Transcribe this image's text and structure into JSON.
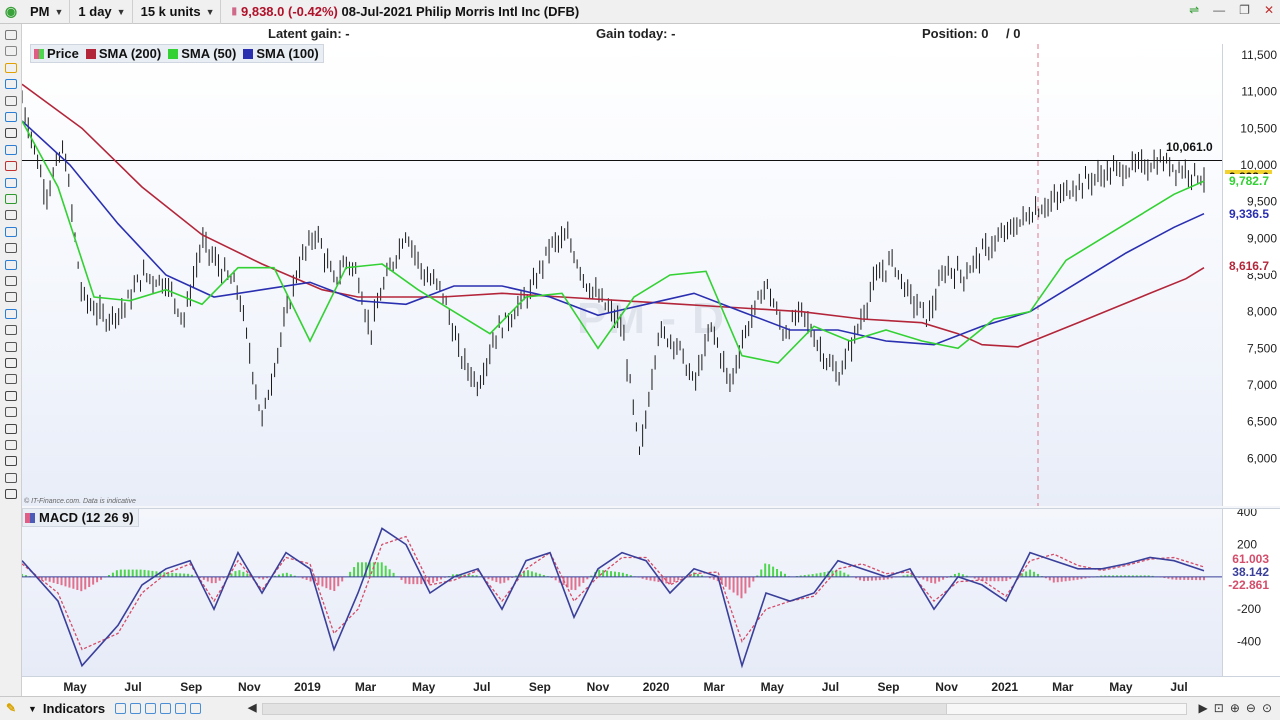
{
  "toolbar": {
    "symbol": "PM",
    "interval": "1 day",
    "size": "15 k units",
    "quote_price": "9,838.0",
    "quote_change": "(-0.42%)",
    "quote_date": "08-Jul-2021",
    "instrument": "Philip Morris Intl Inc (DFB)"
  },
  "infobar": {
    "latent_gain": "Latent gain: -",
    "gain_today": "Gain today: -",
    "position": "Position: 0",
    "position_sep": "/ 0"
  },
  "legend": {
    "price": "Price",
    "sma200": "SMA (200)",
    "sma50": "SMA (50)",
    "sma100": "SMA (100)",
    "macd": "MACD (12 26 9)"
  },
  "watermark": "PM - D",
  "credit": "© IT-Finance.com. Data is indicative",
  "bottom": {
    "indicators_label": "Indicators"
  },
  "colors": {
    "price_up": "#222222",
    "sma200": "#b3263a",
    "sma50": "#33d133",
    "sma100": "#2a2fb0",
    "macd_line": "#3a3f9a",
    "macd_signal": "#d44d6a",
    "hist_pos": "#4fd64f",
    "hist_neg": "#e0708e"
  },
  "chart_data": [
    {
      "type": "line",
      "title": "",
      "y_ticks": [
        "11,500",
        "11,000",
        "10,500",
        "10,000",
        "9,500",
        "9,000",
        "8,500",
        "8,000",
        "7,500",
        "7,000",
        "6,500",
        "6,000"
      ],
      "x_ticks": [
        "May",
        "Jul",
        "Sep",
        "Nov",
        "2019",
        "Mar",
        "May",
        "Jul",
        "Sep",
        "Nov",
        "2020",
        "Mar",
        "May",
        "Jul",
        "Sep",
        "Nov",
        "2021",
        "Mar",
        "May",
        "Jul"
      ],
      "ylim": [
        5350,
        11650
      ],
      "horizontal_line": {
        "value": 10061,
        "label": "10,061.0"
      },
      "badges": [
        {
          "label": "9,838.0",
          "value": 9838,
          "color": "#f2d22e"
        },
        {
          "label": "9,782.7",
          "value": 9782.7,
          "color": "#33d133"
        },
        {
          "label": "9,336.5",
          "value": 9336.5,
          "color": "#2a2fb0"
        },
        {
          "label": "8,616.7",
          "value": 8616.7,
          "color": "#b3263a"
        }
      ],
      "series": [
        {
          "name": "Price",
          "key": "price",
          "x": [
            0,
            0.02,
            0.035,
            0.05,
            0.07,
            0.085,
            0.1,
            0.12,
            0.135,
            0.15,
            0.165,
            0.18,
            0.2,
            0.215,
            0.23,
            0.245,
            0.26,
            0.27,
            0.28,
            0.29,
            0.3,
            0.32,
            0.335,
            0.35,
            0.365,
            0.38,
            0.395,
            0.41,
            0.425,
            0.44,
            0.455,
            0.47,
            0.485,
            0.5,
            0.515,
            0.53,
            0.545,
            0.56,
            0.575,
            0.59,
            0.6,
            0.61,
            0.62,
            0.635,
            0.65,
            0.665,
            0.68,
            0.695,
            0.71,
            0.725,
            0.74,
            0.755,
            0.77,
            0.785,
            0.8,
            0.815,
            0.83,
            0.845,
            0.86,
            0.875,
            0.89,
            0.905,
            0.92,
            0.935,
            0.95,
            0.965,
            0.985
          ],
          "values": [
            10900,
            9600,
            10250,
            8200,
            7900,
            8050,
            8500,
            8400,
            7900,
            8950,
            8600,
            8300,
            6500,
            7600,
            8600,
            9100,
            8400,
            8700,
            8500,
            7700,
            8300,
            9100,
            8500,
            8300,
            7400,
            7000,
            7700,
            8000,
            8300,
            8900,
            9000,
            8400,
            8100,
            7800,
            6000,
            7700,
            7600,
            7000,
            7800,
            7000,
            7600,
            8000,
            8400,
            7700,
            8000,
            7500,
            7100,
            7700,
            8400,
            8700,
            8200,
            7900,
            8600,
            8500,
            8800,
            9000,
            9200,
            9400,
            9500,
            9700,
            9800,
            9900,
            9950,
            10000,
            10050,
            9950,
            9838
          ]
        },
        {
          "name": "SMA (200)",
          "key": "sma200",
          "x": [
            0,
            0.05,
            0.1,
            0.15,
            0.2,
            0.25,
            0.28,
            0.3,
            0.35,
            0.4,
            0.45,
            0.5,
            0.55,
            0.6,
            0.65,
            0.7,
            0.75,
            0.78,
            0.8,
            0.83,
            0.85,
            0.88,
            0.91,
            0.94,
            0.97,
            0.985
          ],
          "values": [
            11100,
            10500,
            9700,
            9050,
            8650,
            8300,
            8200,
            8200,
            8200,
            8250,
            8200,
            8150,
            8100,
            8050,
            8000,
            7900,
            7850,
            7700,
            7550,
            7520,
            7650,
            7850,
            8050,
            8250,
            8450,
            8600
          ]
        },
        {
          "name": "SMA (50)",
          "key": "sma50",
          "x": [
            0,
            0.03,
            0.06,
            0.09,
            0.12,
            0.15,
            0.18,
            0.21,
            0.24,
            0.27,
            0.3,
            0.33,
            0.36,
            0.39,
            0.42,
            0.45,
            0.48,
            0.51,
            0.54,
            0.57,
            0.6,
            0.63,
            0.66,
            0.69,
            0.72,
            0.75,
            0.78,
            0.81,
            0.84,
            0.87,
            0.9,
            0.93,
            0.96,
            0.985
          ],
          "values": [
            10600,
            9700,
            8200,
            8150,
            8300,
            8100,
            8600,
            8600,
            7600,
            8600,
            8650,
            8300,
            8000,
            7700,
            8200,
            8250,
            7500,
            8200,
            8500,
            8550,
            7400,
            7300,
            7800,
            7600,
            7750,
            7600,
            7500,
            7900,
            8000,
            8700,
            9000,
            9300,
            9600,
            9780
          ]
        },
        {
          "name": "SMA (100)",
          "key": "sma100",
          "x": [
            0,
            0.04,
            0.08,
            0.12,
            0.16,
            0.2,
            0.24,
            0.28,
            0.32,
            0.36,
            0.4,
            0.44,
            0.48,
            0.52,
            0.56,
            0.6,
            0.64,
            0.68,
            0.72,
            0.76,
            0.8,
            0.84,
            0.88,
            0.92,
            0.96,
            0.985
          ],
          "values": [
            10600,
            10000,
            9200,
            8500,
            8200,
            8300,
            8400,
            8150,
            8100,
            8350,
            8350,
            8200,
            7950,
            8100,
            8250,
            8000,
            7750,
            7750,
            7600,
            7550,
            7800,
            8000,
            8400,
            8800,
            9150,
            9336
          ]
        }
      ]
    },
    {
      "type": "bar",
      "title": "MACD (12 26 9)",
      "y_ticks": [
        "400",
        "200",
        "-200",
        "-400"
      ],
      "ylim": [
        -620,
        420
      ],
      "badges": [
        {
          "label": "61.003",
          "value": 61.003,
          "color": "#d44d6a"
        },
        {
          "label": "38.142",
          "value": 38.142,
          "color": "#3a3f9a"
        },
        {
          "label": "-22.861",
          "value": -22.861,
          "color": "#d44d6a"
        }
      ],
      "series": [
        {
          "name": "MACD",
          "key": "macd",
          "x": [
            0,
            0.03,
            0.05,
            0.08,
            0.1,
            0.12,
            0.14,
            0.16,
            0.18,
            0.2,
            0.22,
            0.24,
            0.26,
            0.28,
            0.3,
            0.32,
            0.34,
            0.36,
            0.38,
            0.4,
            0.42,
            0.44,
            0.46,
            0.48,
            0.5,
            0.52,
            0.54,
            0.56,
            0.58,
            0.6,
            0.62,
            0.64,
            0.66,
            0.68,
            0.7,
            0.72,
            0.74,
            0.76,
            0.78,
            0.8,
            0.82,
            0.84,
            0.86,
            0.88,
            0.9,
            0.92,
            0.94,
            0.96,
            0.985
          ],
          "values": [
            100,
            -150,
            -550,
            -300,
            -50,
            50,
            100,
            -200,
            150,
            -100,
            150,
            50,
            -450,
            -100,
            300,
            200,
            -100,
            0,
            50,
            -200,
            100,
            150,
            -250,
            50,
            150,
            100,
            -100,
            50,
            0,
            -550,
            -100,
            -150,
            -100,
            100,
            50,
            0,
            50,
            -200,
            0,
            -50,
            -150,
            150,
            100,
            50,
            50,
            80,
            120,
            100,
            38
          ]
        },
        {
          "name": "Signal",
          "key": "signal",
          "x": [
            0,
            0.03,
            0.05,
            0.08,
            0.1,
            0.12,
            0.14,
            0.16,
            0.18,
            0.2,
            0.22,
            0.24,
            0.26,
            0.28,
            0.3,
            0.32,
            0.34,
            0.36,
            0.38,
            0.4,
            0.42,
            0.44,
            0.46,
            0.48,
            0.5,
            0.52,
            0.54,
            0.56,
            0.58,
            0.6,
            0.62,
            0.64,
            0.66,
            0.68,
            0.7,
            0.72,
            0.74,
            0.76,
            0.78,
            0.8,
            0.82,
            0.84,
            0.86,
            0.88,
            0.9,
            0.92,
            0.94,
            0.96,
            0.985
          ],
          "values": [
            80,
            -100,
            -450,
            -350,
            -100,
            20,
            80,
            -150,
            100,
            -80,
            120,
            80,
            -350,
            -200,
            200,
            250,
            -50,
            -20,
            40,
            -150,
            50,
            150,
            -150,
            0,
            120,
            120,
            -50,
            20,
            30,
            -400,
            -200,
            -150,
            -120,
            50,
            80,
            20,
            30,
            -150,
            -30,
            -20,
            -120,
            100,
            140,
            70,
            40,
            70,
            110,
            120,
            61
          ]
        }
      ]
    }
  ]
}
